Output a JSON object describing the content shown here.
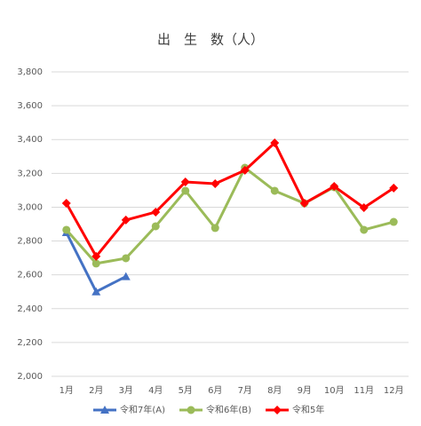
{
  "chart_data": {
    "type": "line",
    "title": "出　生　数（人）",
    "categories": [
      "1月",
      "2月",
      "3月",
      "4月",
      "5月",
      "6月",
      "7月",
      "8月",
      "9月",
      "10月",
      "11月",
      "12月"
    ],
    "series": [
      {
        "name": "令和7年(A)",
        "color": "#4472c4",
        "marker": "triangle",
        "values": [
          2850,
          2500,
          2590,
          null,
          null,
          null,
          null,
          null,
          null,
          null,
          null,
          null
        ]
      },
      {
        "name": "令和6年(B)",
        "color": "#9bbb59",
        "marker": "circle",
        "values": [
          2866,
          2667,
          2698,
          2887,
          3097,
          2877,
          3233,
          3097,
          3023,
          3118,
          2866,
          2913
        ]
      },
      {
        "name": "令和5年",
        "color": "#ff0000",
        "marker": "diamond",
        "values": [
          3023,
          2709,
          2924,
          2971,
          3149,
          3139,
          3218,
          3380,
          3023,
          3123,
          2997,
          3113
        ]
      }
    ],
    "ylim": [
      2000,
      3800
    ],
    "yticks": [
      {
        "value": 2000,
        "label": "2,000"
      },
      {
        "value": 2200,
        "label": "2,200"
      },
      {
        "value": 2400,
        "label": "2,400"
      },
      {
        "value": 2600,
        "label": "2,600"
      },
      {
        "value": 2800,
        "label": "2,800"
      },
      {
        "value": 3000,
        "label": "3,000"
      },
      {
        "value": 3200,
        "label": "3,200"
      },
      {
        "value": 3400,
        "label": "3,400"
      },
      {
        "value": 3600,
        "label": "3,600"
      },
      {
        "value": 3800,
        "label": "3,800"
      }
    ],
    "grid": true,
    "legend": "bottom"
  }
}
